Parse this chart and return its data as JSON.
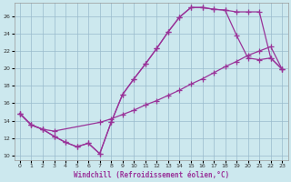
{
  "xlabel": "Windchill (Refroidissement éolien,°C)",
  "bg_color": "#cce8ee",
  "grid_color": "#99bbcc",
  "line_color": "#993399",
  "xlim": [
    -0.5,
    23.5
  ],
  "ylim": [
    9.5,
    27.5
  ],
  "yticks": [
    10,
    12,
    14,
    16,
    18,
    20,
    22,
    24,
    26
  ],
  "xticks": [
    0,
    1,
    2,
    3,
    4,
    5,
    6,
    7,
    8,
    9,
    10,
    11,
    12,
    13,
    14,
    15,
    16,
    17,
    18,
    19,
    20,
    21,
    22,
    23
  ],
  "line1_x": [
    0,
    1,
    2,
    3,
    4,
    5,
    6,
    7,
    8,
    9,
    10,
    11,
    12,
    13,
    14,
    15,
    16,
    17,
    18,
    19,
    20,
    21,
    22,
    23
  ],
  "line1_y": [
    14.8,
    13.5,
    13.0,
    12.2,
    11.5,
    11.0,
    11.4,
    10.2,
    13.8,
    17.0,
    18.8,
    20.5,
    22.3,
    24.2,
    25.9,
    27.0,
    27.0,
    26.8,
    26.7,
    26.5,
    26.5,
    26.5,
    21.2,
    19.9
  ],
  "line2_x": [
    0,
    1,
    2,
    3,
    4,
    5,
    6,
    7,
    8,
    9,
    10,
    11,
    12,
    13,
    14,
    15,
    16,
    17,
    18,
    19,
    20,
    21,
    22,
    23
  ],
  "line2_y": [
    14.8,
    13.5,
    13.0,
    12.2,
    11.5,
    11.0,
    11.4,
    10.2,
    13.8,
    17.0,
    18.8,
    20.5,
    22.3,
    24.2,
    25.9,
    27.0,
    27.0,
    26.8,
    26.7,
    23.8,
    21.2,
    21.0,
    21.2,
    19.9
  ],
  "line3_x": [
    0,
    1,
    2,
    3,
    7,
    8,
    9,
    10,
    11,
    12,
    13,
    14,
    15,
    16,
    17,
    18,
    19,
    20,
    21,
    22,
    23
  ],
  "line3_y": [
    14.8,
    13.5,
    13.0,
    12.8,
    13.8,
    14.2,
    14.7,
    15.2,
    15.8,
    16.3,
    16.9,
    17.5,
    18.2,
    18.8,
    19.5,
    20.2,
    20.8,
    21.5,
    22.0,
    22.5,
    19.9
  ]
}
